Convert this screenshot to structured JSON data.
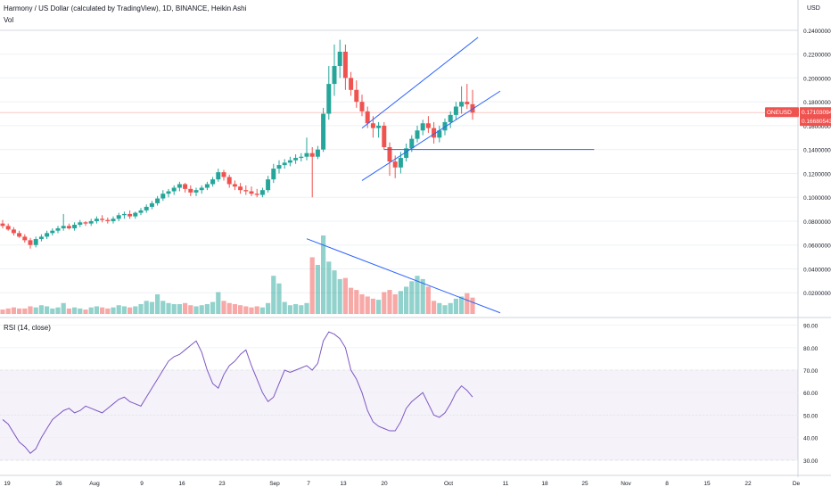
{
  "header": {
    "title": "Harmony / US Dollar (calculated by TradingView), 1D, BINANCE, Heikin Ashi",
    "vol_label": "Vol",
    "currency": "USD"
  },
  "price_axis": {
    "ticks": [
      "0.24000000",
      "0.22000000",
      "0.20000000",
      "0.18000000",
      "0.16000000",
      "0.14000000",
      "0.12000000",
      "0.10000000",
      "0.08000000",
      "0.06000000",
      "0.04000000",
      "0.02000000"
    ]
  },
  "badges": {
    "symbol": "ONEUSD",
    "last_price": "0.17103094",
    "prev_price": "0.16680543"
  },
  "rsi": {
    "label": "RSI (14, close)",
    "ticks": [
      "90.00",
      "80.00",
      "70.00",
      "60.00",
      "50.00",
      "40.00",
      "30.00"
    ]
  },
  "time_axis": {
    "labels": [
      "19",
      "26",
      "Aug",
      "9",
      "16",
      "23",
      "Sep",
      "7",
      "13",
      "20",
      "Oct",
      "11",
      "18",
      "25",
      "Nov",
      "8",
      "15",
      "22",
      "De"
    ]
  },
  "colors": {
    "up": "#26a69a",
    "down": "#ef5350",
    "trend": "#2962ff",
    "rsi": "#7e57c2",
    "badge": "#ef5350"
  },
  "chart_data": {
    "type": "candlestick",
    "style": "Heikin Ashi",
    "interval": "1D",
    "start_date": "2021-07-17",
    "ohlc": [
      [
        0.078,
        0.081,
        0.074,
        0.076
      ],
      [
        0.076,
        0.078,
        0.072,
        0.073
      ],
      [
        0.073,
        0.075,
        0.068,
        0.07
      ],
      [
        0.07,
        0.072,
        0.066,
        0.067
      ],
      [
        0.067,
        0.069,
        0.062,
        0.064
      ],
      [
        0.064,
        0.066,
        0.057,
        0.06
      ],
      [
        0.06,
        0.067,
        0.058,
        0.065
      ],
      [
        0.065,
        0.069,
        0.063,
        0.067
      ],
      [
        0.067,
        0.072,
        0.065,
        0.07
      ],
      [
        0.07,
        0.074,
        0.068,
        0.072
      ],
      [
        0.072,
        0.076,
        0.07,
        0.074
      ],
      [
        0.074,
        0.086,
        0.072,
        0.076
      ],
      [
        0.076,
        0.078,
        0.073,
        0.074
      ],
      [
        0.074,
        0.079,
        0.072,
        0.077
      ],
      [
        0.077,
        0.081,
        0.075,
        0.079
      ],
      [
        0.079,
        0.08,
        0.076,
        0.078
      ],
      [
        0.078,
        0.082,
        0.076,
        0.08
      ],
      [
        0.08,
        0.084,
        0.078,
        0.082
      ],
      [
        0.082,
        0.085,
        0.079,
        0.081
      ],
      [
        0.081,
        0.083,
        0.078,
        0.08
      ],
      [
        0.08,
        0.084,
        0.078,
        0.082
      ],
      [
        0.082,
        0.087,
        0.08,
        0.085
      ],
      [
        0.085,
        0.088,
        0.082,
        0.086
      ],
      [
        0.086,
        0.089,
        0.082,
        0.084
      ],
      [
        0.084,
        0.088,
        0.082,
        0.087
      ],
      [
        0.087,
        0.091,
        0.085,
        0.089
      ],
      [
        0.089,
        0.094,
        0.087,
        0.092
      ],
      [
        0.092,
        0.097,
        0.09,
        0.095
      ],
      [
        0.095,
        0.101,
        0.093,
        0.099
      ],
      [
        0.099,
        0.106,
        0.097,
        0.103
      ],
      [
        0.103,
        0.107,
        0.1,
        0.105
      ],
      [
        0.105,
        0.11,
        0.102,
        0.108
      ],
      [
        0.108,
        0.113,
        0.105,
        0.111
      ],
      [
        0.111,
        0.112,
        0.104,
        0.107
      ],
      [
        0.107,
        0.11,
        0.101,
        0.104
      ],
      [
        0.104,
        0.108,
        0.101,
        0.106
      ],
      [
        0.106,
        0.11,
        0.103,
        0.108
      ],
      [
        0.108,
        0.113,
        0.106,
        0.111
      ],
      [
        0.111,
        0.117,
        0.109,
        0.115
      ],
      [
        0.115,
        0.124,
        0.113,
        0.121
      ],
      [
        0.121,
        0.123,
        0.114,
        0.117
      ],
      [
        0.117,
        0.119,
        0.108,
        0.111
      ],
      [
        0.111,
        0.114,
        0.106,
        0.109
      ],
      [
        0.109,
        0.112,
        0.103,
        0.106
      ],
      [
        0.106,
        0.11,
        0.102,
        0.105
      ],
      [
        0.105,
        0.109,
        0.101,
        0.103
      ],
      [
        0.103,
        0.107,
        0.1,
        0.102
      ],
      [
        0.102,
        0.108,
        0.1,
        0.106
      ],
      [
        0.106,
        0.118,
        0.104,
        0.115
      ],
      [
        0.115,
        0.128,
        0.112,
        0.124
      ],
      [
        0.124,
        0.131,
        0.12,
        0.127
      ],
      [
        0.127,
        0.132,
        0.124,
        0.129
      ],
      [
        0.129,
        0.134,
        0.126,
        0.131
      ],
      [
        0.131,
        0.136,
        0.128,
        0.133
      ],
      [
        0.133,
        0.137,
        0.13,
        0.134
      ],
      [
        0.134,
        0.15,
        0.131,
        0.137
      ],
      [
        0.137,
        0.142,
        0.1,
        0.134
      ],
      [
        0.134,
        0.143,
        0.132,
        0.14
      ],
      [
        0.14,
        0.175,
        0.138,
        0.17
      ],
      [
        0.17,
        0.21,
        0.165,
        0.195
      ],
      [
        0.195,
        0.228,
        0.185,
        0.21
      ],
      [
        0.21,
        0.232,
        0.2,
        0.222
      ],
      [
        0.222,
        0.228,
        0.19,
        0.2
      ],
      [
        0.2,
        0.205,
        0.185,
        0.19
      ],
      [
        0.19,
        0.198,
        0.175,
        0.18
      ],
      [
        0.18,
        0.186,
        0.168,
        0.172
      ],
      [
        0.172,
        0.176,
        0.158,
        0.162
      ],
      [
        0.162,
        0.168,
        0.15,
        0.158
      ],
      [
        0.158,
        0.163,
        0.15,
        0.16
      ],
      [
        0.16,
        0.163,
        0.14,
        0.142
      ],
      [
        0.142,
        0.146,
        0.118,
        0.13
      ],
      [
        0.13,
        0.135,
        0.116,
        0.125
      ],
      [
        0.125,
        0.138,
        0.12,
        0.133
      ],
      [
        0.133,
        0.145,
        0.13,
        0.141
      ],
      [
        0.141,
        0.152,
        0.138,
        0.149
      ],
      [
        0.149,
        0.16,
        0.146,
        0.156
      ],
      [
        0.156,
        0.165,
        0.152,
        0.162
      ],
      [
        0.162,
        0.168,
        0.154,
        0.158
      ],
      [
        0.158,
        0.163,
        0.145,
        0.15
      ],
      [
        0.15,
        0.16,
        0.146,
        0.156
      ],
      [
        0.156,
        0.166,
        0.152,
        0.163
      ],
      [
        0.163,
        0.172,
        0.158,
        0.169
      ],
      [
        0.169,
        0.18,
        0.165,
        0.176
      ],
      [
        0.176,
        0.193,
        0.17,
        0.18
      ],
      [
        0.18,
        0.195,
        0.174,
        0.178
      ],
      [
        0.178,
        0.19,
        0.165,
        0.171
      ]
    ],
    "volume": [
      0.004,
      0.005,
      0.006,
      0.005,
      0.005,
      0.007,
      0.006,
      0.008,
      0.007,
      0.005,
      0.006,
      0.01,
      0.005,
      0.006,
      0.005,
      0.004,
      0.006,
      0.007,
      0.006,
      0.005,
      0.006,
      0.008,
      0.007,
      0.006,
      0.007,
      0.009,
      0.012,
      0.011,
      0.018,
      0.012,
      0.01,
      0.009,
      0.009,
      0.01,
      0.008,
      0.007,
      0.008,
      0.009,
      0.011,
      0.02,
      0.012,
      0.01,
      0.009,
      0.008,
      0.007,
      0.006,
      0.007,
      0.006,
      0.01,
      0.035,
      0.028,
      0.011,
      0.008,
      0.009,
      0.008,
      0.01,
      0.052,
      0.045,
      0.072,
      0.048,
      0.04,
      0.032,
      0.033,
      0.024,
      0.022,
      0.018,
      0.016,
      0.014,
      0.013,
      0.02,
      0.022,
      0.018,
      0.021,
      0.025,
      0.03,
      0.035,
      0.032,
      0.025,
      0.012,
      0.01,
      0.008,
      0.01,
      0.014,
      0.016,
      0.019,
      0.015
    ],
    "rsi": [
      48,
      46,
      42,
      38,
      36,
      33,
      35,
      40,
      44,
      48,
      50,
      52,
      53,
      51,
      52,
      54,
      53,
      52,
      51,
      53,
      55,
      57,
      58,
      56,
      55,
      54,
      58,
      62,
      66,
      70,
      74,
      76,
      77,
      79,
      81,
      83,
      78,
      70,
      64,
      62,
      68,
      72,
      74,
      77,
      79,
      72,
      66,
      60,
      56,
      58,
      64,
      70,
      69,
      70,
      71,
      72,
      70,
      73,
      83,
      87,
      86,
      84,
      80,
      70,
      66,
      60,
      52,
      47,
      45,
      44,
      43,
      43,
      47,
      53,
      56,
      58,
      60,
      55,
      50,
      49,
      51,
      55,
      60,
      63,
      61,
      58
    ],
    "annotations": {
      "channel_upper": [
        [
          "2021-09-20",
          0.158
        ],
        [
          "2021-10-11",
          0.234
        ]
      ],
      "channel_lower": [
        [
          "2021-09-20",
          0.114
        ],
        [
          "2021-10-15",
          0.189
        ]
      ],
      "support_line": [
        [
          "2021-09-24",
          0.14
        ],
        [
          "2021-11-01",
          0.14
        ]
      ],
      "volume_trend": [
        [
          "2021-09-10",
          0.069
        ],
        [
          "2021-10-15",
          0.001
        ]
      ]
    },
    "ylim": [
      0,
      0.24
    ],
    "rsi_range": [
      30,
      90
    ],
    "rsi_bands": [
      70,
      50,
      30
    ]
  }
}
